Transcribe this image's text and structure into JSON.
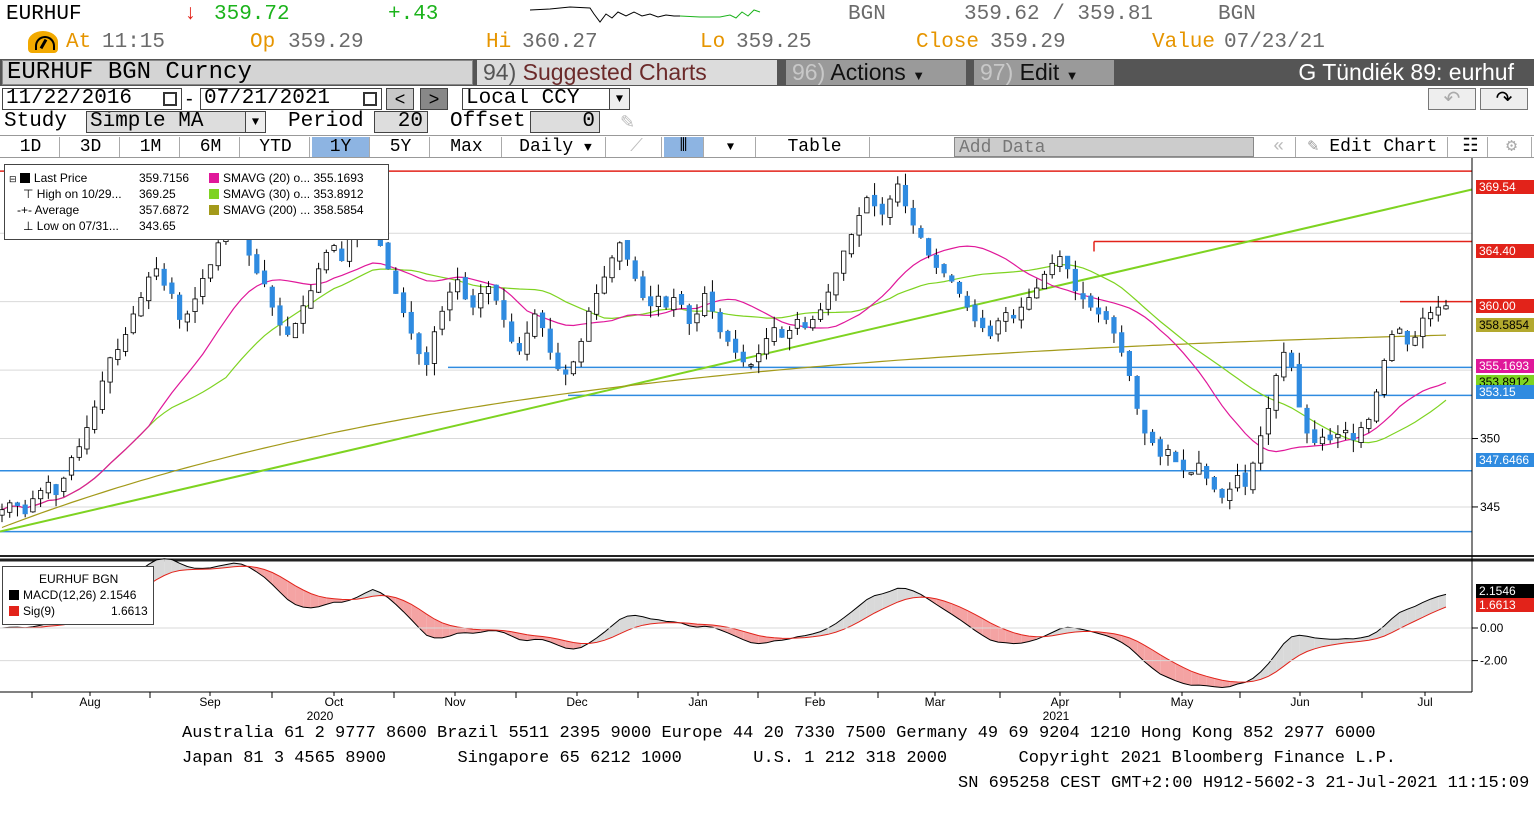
{
  "ticker": {
    "symbol": "EURHUF",
    "last_price": "359.72",
    "change": "+.43",
    "source": "BGN",
    "bid_ask": "359.62 / 359.81",
    "source2": "BGN",
    "time_label": "At",
    "time": "11:15",
    "open_label": "Op",
    "open": "359.29",
    "high_label": "Hi",
    "high": "360.27",
    "low_label": "Lo",
    "low": "359.25",
    "close_label": "Close",
    "close": "359.29",
    "value_label": "Value",
    "value_date": "07/23/21"
  },
  "menubar": {
    "security": "EURHUF BGN Curncy",
    "suggested_num": "94)",
    "suggested": "Suggested Charts",
    "actions_num": "96)",
    "actions": "Actions",
    "edit_num": "97)",
    "edit": "Edit",
    "user": "G Tündiék 89: eurhuf"
  },
  "controls": {
    "start_date": "11/22/2016",
    "date_sep": "-",
    "end_date": "07/21/2021",
    "currency": "Local CCY",
    "study_label": "Study",
    "study": "Simple MA",
    "period_label": "Period",
    "period": "20",
    "offset_label": "Offset",
    "offset": "0"
  },
  "toolbar": {
    "ranges": [
      "1D",
      "3D",
      "1M",
      "6M",
      "YTD",
      "1Y",
      "5Y",
      "Max"
    ],
    "selected_range": "1Y",
    "frequency": "Daily",
    "table": "Table",
    "add_data": "Add Data",
    "edit_chart": "Edit Chart"
  },
  "legend": {
    "rows": [
      {
        "label": "Last Price",
        "value": "359.7156",
        "color": "#000000"
      },
      {
        "label": "High on 10/29...",
        "value": "369.25",
        "color": "#000000"
      },
      {
        "label": "Average",
        "value": "357.6872",
        "color": "#000000"
      },
      {
        "label": "Low on 07/31...",
        "value": "343.65",
        "color": "#000000"
      }
    ],
    "sma": [
      {
        "label": "SMAVG (20)",
        "abbr": "o...",
        "value": "355.1693",
        "color": "#e0189a"
      },
      {
        "label": "SMAVG (30)",
        "abbr": "o...",
        "value": "353.8912",
        "color": "#7ed321"
      },
      {
        "label": "SMAVG (200)",
        "abbr": "...",
        "value": "358.5854",
        "color": "#a39a1a"
      }
    ]
  },
  "macd_legend": {
    "title": "EURHUF BGN",
    "macd_label": "MACD(12,26)",
    "macd_value": "2.1546",
    "sig_label": "Sig(9)",
    "sig_value": "1.6613"
  },
  "price_labels": [
    {
      "text": "369.54",
      "bg": "#e2231a",
      "fg": "#ffffff"
    },
    {
      "text": "364.40",
      "bg": "#e2231a",
      "fg": "#ffffff"
    },
    {
      "text": "360.00",
      "bg": "#e2231a",
      "fg": "#ffffff"
    },
    {
      "text": "358.5854",
      "bg": "#b3a92e",
      "fg": "#000000"
    },
    {
      "text": "355.1693",
      "bg": "#e0189a",
      "fg": "#ffffff"
    },
    {
      "text": "353.8912",
      "bg": "#7ed321",
      "fg": "#000000"
    },
    {
      "text": "353.15",
      "bg": "#2f8be0",
      "fg": "#ffffff"
    },
    {
      "text": "347.6466",
      "bg": "#2f8be0",
      "fg": "#ffffff"
    },
    {
      "text": "2.1546",
      "bg": "#000000",
      "fg": "#ffffff"
    },
    {
      "text": "1.6613",
      "bg": "#e2231a",
      "fg": "#ffffff"
    }
  ],
  "chart_data": {
    "type": "candlestick",
    "title": "",
    "ylabel": "",
    "yticks": [
      "345",
      "350"
    ],
    "ylim": [
      342,
      370.5
    ],
    "xticks": [
      "Aug",
      "Sep",
      "Oct",
      "Nov",
      "Dec",
      "Jan",
      "Feb",
      "Mar",
      "Apr",
      "May",
      "Jun",
      "Jul"
    ],
    "year_labels": [
      "2020",
      "2021"
    ],
    "last_price": 359.7156,
    "high": 369.25,
    "average": 357.6872,
    "low": 343.65,
    "series": [
      {
        "name": "SMAVG (20)",
        "last": 355.1693,
        "color": "#e0189a"
      },
      {
        "name": "SMAVG (30)",
        "last": 353.8912,
        "color": "#7ed321"
      },
      {
        "name": "SMAVG (200)",
        "last": 358.5854,
        "color": "#a39a1a"
      }
    ],
    "horizontal_lines": [
      {
        "value": 369.54,
        "color": "#e2231a"
      },
      {
        "value": 364.4,
        "color": "#e2231a"
      },
      {
        "value": 360.0,
        "color": "#e2231a"
      },
      {
        "value": 355.2,
        "color": "#2f8be0"
      },
      {
        "value": 353.15,
        "color": "#2f8be0"
      },
      {
        "value": 347.6466,
        "color": "#2f8be0"
      },
      {
        "value": 343.2,
        "color": "#2f8be0"
      }
    ],
    "trendline": {
      "from": 343.2,
      "to": 368.2,
      "color": "#7ed321"
    },
    "approx_closes": [
      344.8,
      345.3,
      345.1,
      344.5,
      345.6,
      346.2,
      346.8,
      345.9,
      347.1,
      348.6,
      349.4,
      350.8,
      352.3,
      354.2,
      355.9,
      356.5,
      357.6,
      359.1,
      360.3,
      361.8,
      362.4,
      361.2,
      360.6,
      358.7,
      359.1,
      360.2,
      361.7,
      362.7,
      364.3,
      364.9,
      365.7,
      364.6,
      363.4,
      362.1,
      361.3,
      359.6,
      358.3,
      357.6,
      358.4,
      359.7,
      360.8,
      362.4,
      363.6,
      364.1,
      363.0,
      364.7,
      366.2,
      367.7,
      368.4,
      364.1,
      362.4,
      360.6,
      359.2,
      357.7,
      356.2,
      355.4,
      357.8,
      359.3,
      360.7,
      361.6,
      360.2,
      359.6,
      360.6,
      361.1,
      360.1,
      358.7,
      357.1,
      356.4,
      357.7,
      359.1,
      358.1,
      356.3,
      355.1,
      354.7,
      355.6,
      357.1,
      359.3,
      360.6,
      361.8,
      363.2,
      364.3,
      363.1,
      361.7,
      360.3,
      359.7,
      360.4,
      359.6,
      360.3,
      359.8,
      358.4,
      359.1,
      360.6,
      359.3,
      357.8,
      357.1,
      356.3,
      355.6,
      355.4,
      356.2,
      357.3,
      358.1,
      357.4,
      357.9,
      358.7,
      358.1,
      358.7,
      359.4,
      360.7,
      362.1,
      363.7,
      364.9,
      366.3,
      367.6,
      367.0,
      366.4,
      367.5,
      368.6,
      367.0,
      365.6,
      364.7,
      363.4,
      362.5,
      362.1,
      361.5,
      360.6,
      359.6,
      358.6,
      358.1,
      357.5,
      358.6,
      359.2,
      358.8,
      359.6,
      360.3,
      361.0,
      362.0,
      362.8,
      363.3,
      362.4,
      360.8,
      360.2,
      359.6,
      359.1,
      358.7,
      357.7,
      356.3,
      354.6,
      352.2,
      350.4,
      349.7,
      348.7,
      349.2,
      348.3,
      347.7,
      347.5,
      348.2,
      347.1,
      346.3,
      345.7,
      346.3,
      347.3,
      346.5,
      348.2,
      350.2,
      352.2,
      354.6,
      356.3,
      355.2,
      352.3,
      350.4,
      349.7,
      350.1,
      349.9,
      350.3,
      350.6,
      349.9,
      350.8,
      351.4,
      353.4,
      355.7,
      357.6,
      358.0,
      356.9,
      357.4,
      358.8,
      359.2,
      359.6,
      359.7
    ]
  },
  "macd_chart": {
    "yticks": [
      "0.00",
      "-2.00"
    ],
    "ylim": [
      -3.8,
      3.8
    ],
    "series": [
      {
        "name": "MACD(12,26)",
        "last": 2.1546,
        "color": "#000000"
      },
      {
        "name": "Sig(9)",
        "last": 1.6613,
        "color": "#e2231a"
      }
    ]
  },
  "footer": {
    "line1": "Australia 61 2 9777 8600 Brazil 5511 2395 9000 Europe 44 20 7330 7500 Germany 49 69 9204 1210 Hong Kong 852 2977 6000",
    "line2": "Japan 81 3 4565 8900       Singapore 65 6212 1000       U.S. 1 212 318 2000       Copyright 2021 Bloomberg Finance L.P.",
    "line3": "SN 695258 CEST GMT+2:00 H912-5602-3 21-Jul-2021 11:15:09"
  }
}
